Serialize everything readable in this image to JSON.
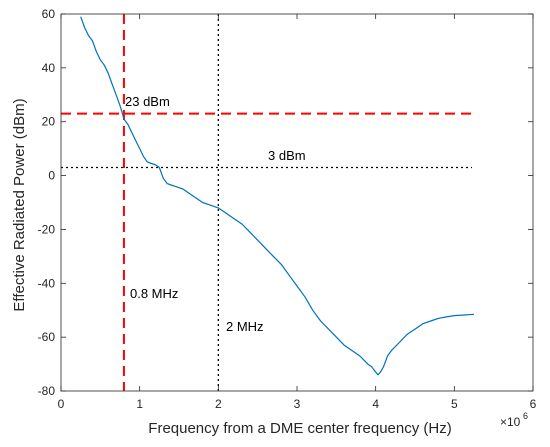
{
  "chart_data": {
    "type": "line",
    "xlabel": "Frequency from a DME center frequency (Hz)",
    "ylabel": "Effective Radiated Power (dBm)",
    "x_multiplier": {
      "base": "×10",
      "exponent": "6"
    },
    "xlim": [
      0,
      6
    ],
    "ylim": [
      -80,
      60
    ],
    "x_ticks": [
      0,
      1,
      2,
      3,
      4,
      5,
      6
    ],
    "y_ticks": [
      -80,
      -60,
      -40,
      -20,
      0,
      20,
      40,
      60
    ],
    "x_tick_labels": [
      "0",
      "1",
      "2",
      "3",
      "4",
      "5",
      "6"
    ],
    "y_tick_labels": [
      "-80",
      "-60",
      "-40",
      "-20",
      "0",
      "20",
      "40",
      "60"
    ],
    "grid": false,
    "colors": {
      "curve": "#0072BD",
      "red_lines": "#ff0000",
      "black_lines": "#000000"
    },
    "series": [
      {
        "x": [
          0.25,
          0.3,
          0.35,
          0.4,
          0.45,
          0.5,
          0.55,
          0.6,
          0.65,
          0.7,
          0.75,
          0.78,
          0.8,
          0.85,
          0.9,
          0.95,
          1.0,
          1.05,
          1.1,
          1.15,
          1.2,
          1.25,
          1.3,
          1.35,
          1.4,
          1.45,
          1.5,
          1.55,
          1.6,
          1.7,
          1.8,
          1.9,
          2.0,
          2.1,
          2.2,
          2.3,
          2.4,
          2.5,
          2.6,
          2.7,
          2.8,
          2.9,
          3.0,
          3.1,
          3.2,
          3.3,
          3.4,
          3.5,
          3.6,
          3.7,
          3.8,
          3.9,
          3.95,
          4.0,
          4.03,
          4.06,
          4.1,
          4.15,
          4.2,
          4.3,
          4.4,
          4.5,
          4.6,
          4.7,
          4.8,
          4.9,
          5.0,
          5.1,
          5.25
        ],
        "y": [
          59,
          55,
          52,
          50,
          46,
          43,
          41,
          38,
          34,
          30,
          26,
          23,
          21,
          19,
          16,
          13,
          10,
          7,
          5,
          4.5,
          4,
          3,
          -1,
          -3,
          -3.5,
          -4,
          -4.5,
          -5,
          -6,
          -8,
          -10,
          -11,
          -12,
          -14,
          -16,
          -18,
          -21,
          -24,
          -27,
          -30,
          -33,
          -37,
          -41,
          -45,
          -50,
          -54,
          -57,
          -60,
          -63,
          -65,
          -67,
          -70,
          -71,
          -73,
          -74,
          -73,
          -71,
          -67,
          -65,
          -62,
          -59,
          -57,
          -55,
          -54,
          -53,
          -52.5,
          -52,
          -51.8,
          -51.5
        ]
      }
    ],
    "reference_lines": [
      {
        "orientation": "horizontal",
        "value": 23,
        "style": "dashed",
        "color": "red",
        "label": "23 dBm"
      },
      {
        "orientation": "horizontal",
        "value": 3,
        "style": "dotted",
        "color": "black",
        "label": "3 dBm"
      },
      {
        "orientation": "vertical",
        "value": 0.8,
        "style": "dashed",
        "color": "red",
        "label": "0.8 MHz"
      },
      {
        "orientation": "vertical",
        "value": 2,
        "style": "dotted",
        "color": "black",
        "label": "2 MHz"
      }
    ]
  }
}
